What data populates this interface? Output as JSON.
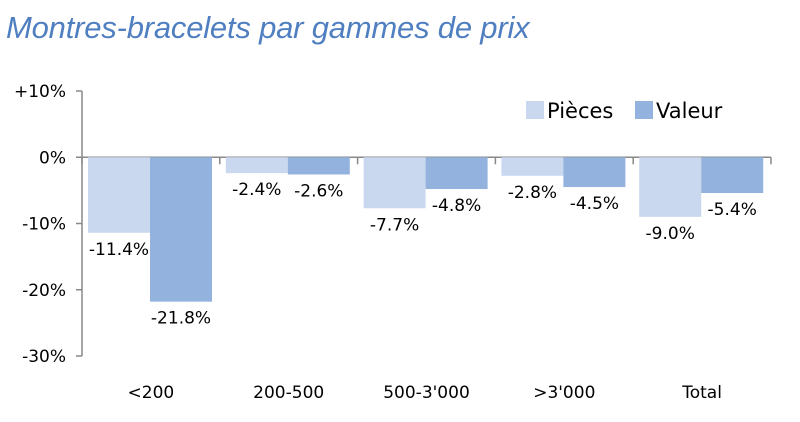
{
  "title": "Montres-bracelets par gammes de prix",
  "colors": {
    "series1": "#c9d7ef",
    "series2": "#93b2dd",
    "title": "#4f7fc0",
    "axis": "#888888"
  },
  "chart_data": {
    "type": "bar",
    "title": "Montres-bracelets par gammes de prix",
    "categories": [
      "<200",
      "200-500",
      "500-3'000",
      ">3'000",
      "Total"
    ],
    "series": [
      {
        "name": "Pièces",
        "values": [
          -11.4,
          -2.4,
          -7.7,
          -2.8,
          -9.0
        ],
        "labels": [
          "-11.4%",
          "-2.4%",
          "-7.7%",
          "-2.8%",
          "-9.0%"
        ]
      },
      {
        "name": "Valeur",
        "values": [
          -21.8,
          -2.6,
          -4.8,
          -4.5,
          -5.4
        ],
        "labels": [
          "-21.8%",
          "-2.6%",
          "-4.8%",
          "-4.5%",
          "-5.4%"
        ]
      }
    ],
    "ylim": [
      -30,
      10
    ],
    "yticks": [
      10,
      0,
      -10,
      -20,
      -30
    ],
    "ytick_labels": [
      "+10%",
      "0%",
      "-10%",
      "-20%",
      "-30%"
    ],
    "grid": false,
    "legend_position": "top-right"
  }
}
